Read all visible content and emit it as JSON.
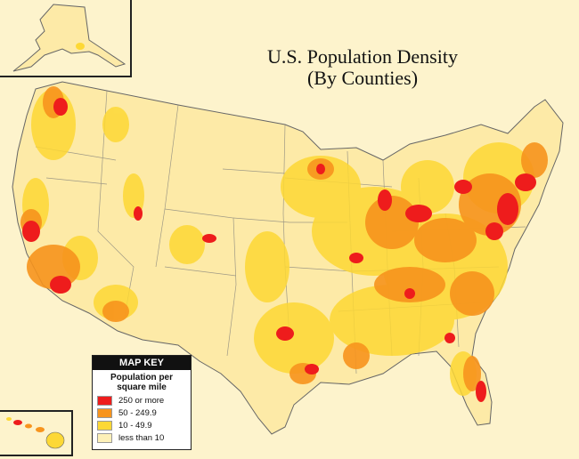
{
  "title": {
    "line1": "U.S. Population Density",
    "line2": "(By Counties)"
  },
  "key": {
    "header": "MAP KEY",
    "subtitle_line1": "Population per",
    "subtitle_line2": "square mile",
    "items": [
      {
        "label": "250 or more",
        "color": "#ee1c1c"
      },
      {
        "label": "50 - 249.9",
        "color": "#f7941d"
      },
      {
        "label": "10 - 49.9",
        "color": "#fdd835"
      },
      {
        "label": "less than 10",
        "color": "#fdf0b8"
      }
    ]
  },
  "colors": {
    "background": "#fdf3cc",
    "state_border": "#555555",
    "inset_border": "#222222"
  }
}
